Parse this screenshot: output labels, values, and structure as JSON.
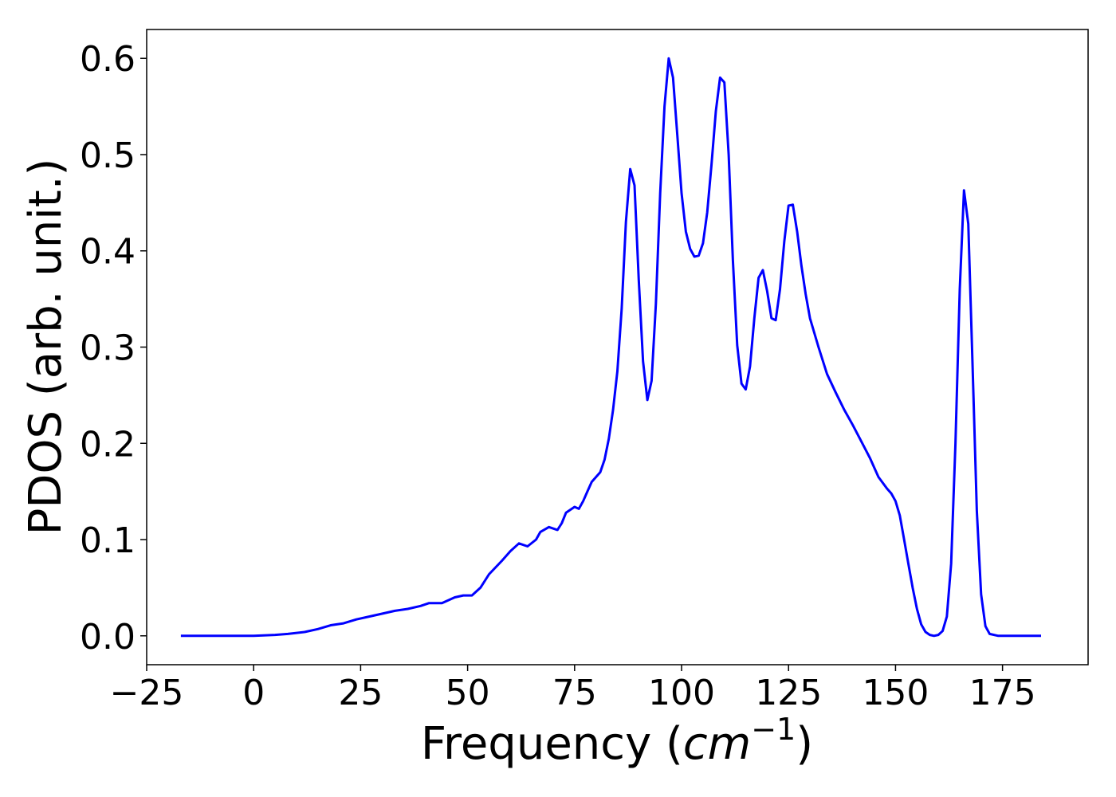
{
  "chart_data": {
    "type": "line",
    "title": "",
    "xlabel_text": "Frequency (",
    "xlabel_math": "cm",
    "xlabel_sup": "−1",
    "xlabel_close": ")",
    "ylabel": "PDOS (arb. unit.)",
    "xlim": [
      -25,
      195
    ],
    "ylim": [
      -0.03,
      0.63
    ],
    "xticks": [
      -25,
      0,
      25,
      50,
      75,
      100,
      125,
      150,
      175
    ],
    "xtick_labels": [
      "−25",
      "0",
      "25",
      "50",
      "75",
      "100",
      "125",
      "150",
      "175"
    ],
    "yticks": [
      0.0,
      0.1,
      0.2,
      0.3,
      0.4,
      0.5,
      0.6
    ],
    "ytick_labels": [
      "0.0",
      "0.1",
      "0.2",
      "0.3",
      "0.4",
      "0.5",
      "0.6"
    ],
    "grid": false,
    "series": [
      {
        "color": "#0000ff",
        "x": [
          -17,
          -10,
          -5,
          0,
          5,
          8,
          12,
          15,
          18,
          21,
          24,
          27,
          30,
          33,
          36,
          39,
          41,
          44,
          47,
          49,
          51,
          53,
          55,
          58,
          60,
          62,
          64,
          66,
          67,
          69,
          71,
          72,
          73,
          75,
          76,
          77,
          78,
          79,
          80,
          81,
          82,
          83,
          84,
          85,
          86,
          87,
          88,
          89,
          90,
          91,
          92,
          93,
          94,
          95,
          96,
          97,
          98,
          99,
          100,
          101,
          102,
          103,
          104,
          105,
          106,
          107,
          108,
          109,
          110,
          111,
          112,
          113,
          114,
          115,
          116,
          117,
          118,
          119,
          120,
          121,
          122,
          123,
          124,
          125,
          126,
          127,
          128,
          129,
          130,
          132,
          134,
          136,
          138,
          140,
          142,
          144,
          146,
          148,
          149,
          150,
          151,
          152,
          153,
          154,
          155,
          156,
          157,
          158,
          159,
          160,
          161,
          162,
          163,
          164,
          165,
          166,
          167,
          168,
          169,
          170,
          171,
          172,
          174,
          178,
          184
        ],
        "y": [
          0.0,
          0.0,
          0.0,
          0.0,
          0.001,
          0.002,
          0.004,
          0.007,
          0.011,
          0.013,
          0.017,
          0.02,
          0.023,
          0.026,
          0.028,
          0.031,
          0.034,
          0.034,
          0.04,
          0.042,
          0.042,
          0.05,
          0.064,
          0.078,
          0.088,
          0.096,
          0.093,
          0.1,
          0.108,
          0.113,
          0.11,
          0.117,
          0.128,
          0.134,
          0.132,
          0.14,
          0.15,
          0.16,
          0.165,
          0.17,
          0.183,
          0.205,
          0.235,
          0.275,
          0.34,
          0.43,
          0.485,
          0.468,
          0.37,
          0.285,
          0.245,
          0.265,
          0.345,
          0.46,
          0.55,
          0.6,
          0.58,
          0.52,
          0.46,
          0.42,
          0.402,
          0.394,
          0.395,
          0.408,
          0.44,
          0.49,
          0.545,
          0.58,
          0.575,
          0.5,
          0.39,
          0.302,
          0.262,
          0.256,
          0.28,
          0.33,
          0.372,
          0.38,
          0.358,
          0.33,
          0.328,
          0.36,
          0.41,
          0.447,
          0.448,
          0.42,
          0.385,
          0.355,
          0.33,
          0.3,
          0.272,
          0.253,
          0.235,
          0.219,
          0.202,
          0.185,
          0.165,
          0.153,
          0.148,
          0.14,
          0.125,
          0.1,
          0.075,
          0.05,
          0.028,
          0.012,
          0.004,
          0.001,
          0.0,
          0.001,
          0.005,
          0.02,
          0.075,
          0.2,
          0.36,
          0.463,
          0.428,
          0.28,
          0.13,
          0.043,
          0.01,
          0.002,
          0.0,
          0.0,
          0.0
        ]
      }
    ]
  }
}
